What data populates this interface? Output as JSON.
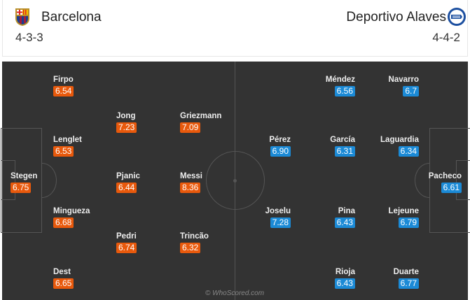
{
  "home": {
    "name": "Barcelona",
    "formation": "4-3-3",
    "color": "#e8590c",
    "players": [
      {
        "name": "Firpo",
        "rating": "6.54"
      },
      {
        "name": "Jong",
        "rating": "7.23"
      },
      {
        "name": "Griezmann",
        "rating": "7.09"
      },
      {
        "name": "Lenglet",
        "rating": "6.53"
      },
      {
        "name": "Stegen",
        "rating": "6.75"
      },
      {
        "name": "Pjanic",
        "rating": "6.44"
      },
      {
        "name": "Messi",
        "rating": "8.36"
      },
      {
        "name": "Mingueza",
        "rating": "6.68"
      },
      {
        "name": "Pedri",
        "rating": "6.74"
      },
      {
        "name": "Trincão",
        "rating": "6.32"
      },
      {
        "name": "Dest",
        "rating": "6.65"
      }
    ]
  },
  "away": {
    "name": "Deportivo Alaves",
    "formation": "4-4-2",
    "color": "#1b8ad6",
    "players": [
      {
        "name": "Méndez",
        "rating": "6.56"
      },
      {
        "name": "Navarro",
        "rating": "6.7"
      },
      {
        "name": "Pérez",
        "rating": "6.90"
      },
      {
        "name": "García",
        "rating": "6.31"
      },
      {
        "name": "Laguardia",
        "rating": "6.34"
      },
      {
        "name": "Pacheco",
        "rating": "6.61"
      },
      {
        "name": "Joselu",
        "rating": "7.28"
      },
      {
        "name": "Pina",
        "rating": "6.43"
      },
      {
        "name": "Lejeune",
        "rating": "6.79"
      },
      {
        "name": "Rioja",
        "rating": "6.43"
      },
      {
        "name": "Duarte",
        "rating": "6.77"
      }
    ]
  },
  "watermark": "© WhoScored.com"
}
